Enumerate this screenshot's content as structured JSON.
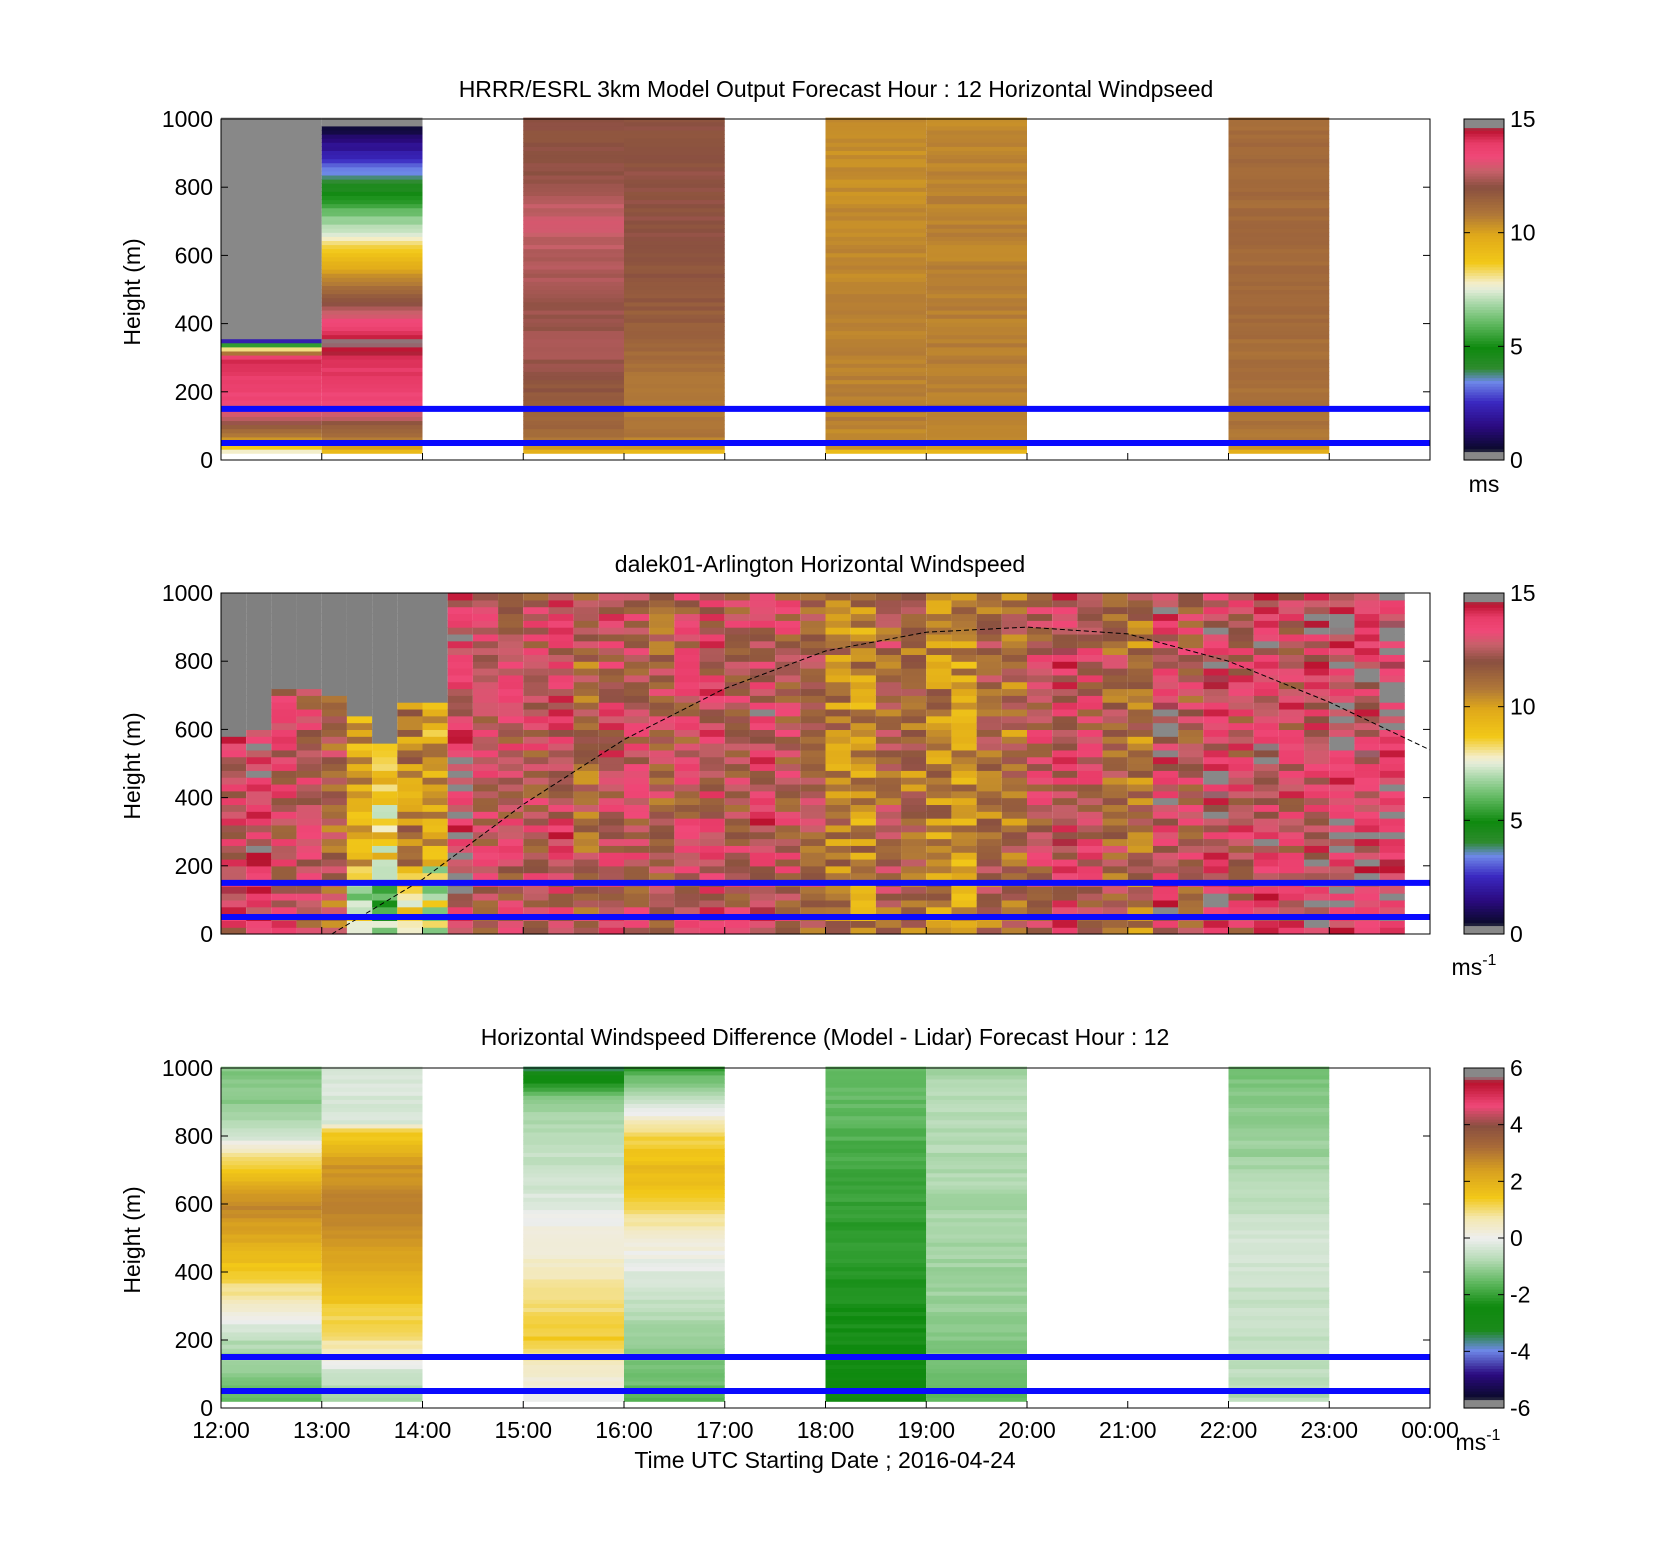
{
  "figure": {
    "xlabel": "Time UTC  Starting Date ; 2016-04-24"
  },
  "chart_data": [
    {
      "type": "heatmap",
      "title": "HRRR/ESRL 3km Model Output   Forecast Hour : 12 Horizontal Windpseed",
      "ylabel": "Height (m)",
      "ylim": [
        0,
        1000
      ],
      "yticks": [
        0,
        200,
        400,
        600,
        800,
        1000
      ],
      "x_ticklabels": [
        "12:00",
        "13:00",
        "14:00",
        "15:00",
        "16:00",
        "17:00",
        "18:00",
        "19:00",
        "20:00",
        "21:00",
        "22:00",
        "23:00",
        "00:00"
      ],
      "show_x_ticklabels": false,
      "colorbar": {
        "min": 0,
        "max": 15,
        "ticks": [
          0,
          5,
          10,
          15
        ],
        "unit": "ms",
        "unit_sup": ""
      },
      "reference_lines_m": [
        150,
        50
      ],
      "columns": [
        {
          "start_hour": 0,
          "end_hour": 1,
          "profile": [
            [
              25,
              7.6
            ],
            [
              40,
              8.7
            ],
            [
              60,
              10.2
            ],
            [
              80,
              11.0
            ],
            [
              100,
              11.6
            ],
            [
              130,
              12.8
            ],
            [
              160,
              13.3
            ],
            [
              200,
              13.6
            ],
            [
              250,
              13.9
            ],
            [
              300,
              14.2
            ],
            [
              360,
              0
            ],
            [
              1000,
              0
            ]
          ]
        },
        {
          "start_hour": 1,
          "end_hour": 2,
          "profile": [
            [
              25,
              9.2
            ],
            [
              40,
              10.2
            ],
            [
              60,
              10.8
            ],
            [
              80,
              11.2
            ],
            [
              100,
              11.6
            ],
            [
              130,
              12.8
            ],
            [
              160,
              13.3
            ],
            [
              200,
              13.6
            ],
            [
              250,
              13.9
            ],
            [
              300,
              14.3
            ],
            [
              350,
              14.6
            ],
            [
              1000,
              0
            ]
          ]
        },
        {
          "start_hour": 3,
          "end_hour": 4,
          "profile": [
            [
              25,
              9.4
            ],
            [
              40,
              10.4
            ],
            [
              80,
              11.2
            ],
            [
              150,
              11.6
            ],
            [
              250,
              12.0
            ],
            [
              320,
              12.4
            ],
            [
              380,
              12.2
            ],
            [
              500,
              12.3
            ],
            [
              600,
              12.5
            ],
            [
              700,
              12.9
            ],
            [
              850,
              12.1
            ],
            [
              1000,
              11.9
            ]
          ]
        },
        {
          "start_hour": 4,
          "end_hour": 5,
          "profile": [
            [
              25,
              9.4
            ],
            [
              40,
              10.4
            ],
            [
              80,
              10.9
            ],
            [
              200,
              10.8
            ],
            [
              300,
              11.2
            ],
            [
              400,
              11.6
            ],
            [
              550,
              11.8
            ],
            [
              700,
              12.0
            ],
            [
              850,
              12.0
            ],
            [
              1000,
              12.0
            ]
          ]
        },
        {
          "start_hour": 6,
          "end_hour": 7,
          "profile": [
            [
              25,
              9.3
            ],
            [
              40,
              10.4
            ],
            [
              100,
              10.6
            ],
            [
              300,
              10.6
            ],
            [
              600,
              10.5
            ],
            [
              800,
              10.4
            ],
            [
              1000,
              10.4
            ]
          ]
        },
        {
          "start_hour": 7,
          "end_hour": 8,
          "profile": [
            [
              25,
              9.3
            ],
            [
              40,
              10.4
            ],
            [
              100,
              10.6
            ],
            [
              300,
              10.7
            ],
            [
              600,
              10.6
            ],
            [
              800,
              10.6
            ],
            [
              1000,
              10.5
            ]
          ]
        },
        {
          "start_hour": 10,
          "end_hour": 11,
          "profile": [
            [
              25,
              9.4
            ],
            [
              40,
              10.6
            ],
            [
              100,
              11.0
            ],
            [
              300,
              11.1
            ],
            [
              600,
              11.2
            ],
            [
              800,
              11.2
            ],
            [
              1000,
              11.2
            ]
          ]
        }
      ]
    },
    {
      "type": "heatmap",
      "title": "dalek01-Arlington  Horizontal Windspeed",
      "ylabel": "Height (m)",
      "ylim": [
        0,
        1000
      ],
      "yticks": [
        0,
        200,
        400,
        600,
        800,
        1000
      ],
      "x_ticklabels": [
        "12:00",
        "13:00",
        "14:00",
        "15:00",
        "16:00",
        "17:00",
        "18:00",
        "19:00",
        "20:00",
        "21:00",
        "22:00",
        "23:00",
        "00:00"
      ],
      "show_x_ticklabels": false,
      "colorbar": {
        "min": 0,
        "max": 15,
        "ticks": [
          0,
          5,
          10,
          15
        ],
        "unit": "ms",
        "unit_sup": "-1"
      },
      "reference_lines_m": [
        150,
        50
      ],
      "column_width_hours": 0.25,
      "end_hour": 11.85,
      "curve": {
        "style": "dashed",
        "points": [
          [
            1.1,
            0
          ],
          [
            2,
            160
          ],
          [
            3,
            380
          ],
          [
            4,
            570
          ],
          [
            5,
            720
          ],
          [
            6,
            830
          ],
          [
            7,
            885
          ],
          [
            8,
            900
          ],
          [
            9,
            880
          ],
          [
            10,
            800
          ],
          [
            11,
            680
          ],
          [
            12,
            540
          ]
        ]
      },
      "columns_mean_speed": [
        13.2,
        13.8,
        12.8,
        12.4,
        11.6,
        10.0,
        8.6,
        10.6,
        9.8,
        13.6,
        12.6,
        12.6,
        12.5,
        13.1,
        11.6,
        12.8,
        12.4,
        11.8,
        12.4,
        12.9,
        12.4,
        13.2,
        12.4,
        11.8,
        10.8,
        10.4,
        11.8,
        11.2,
        10.6,
        10.2,
        11.4,
        11.2,
        12.4,
        13.1,
        12.6,
        11.7,
        11.1,
        13.4,
        12.2,
        13.4,
        12.8,
        13.4,
        12.9,
        13.3,
        13.9,
        13.5,
        14.1
      ],
      "data_top_m": [
        570,
        600,
        710,
        710,
        690,
        640,
        560,
        680,
        680,
        1000,
        1000,
        1000,
        1000,
        1000,
        1000,
        1000,
        1000,
        1000,
        1000,
        1000,
        1000,
        1000,
        1000,
        1000,
        1000,
        1000,
        1000,
        1000,
        1000,
        1000,
        1000,
        1000,
        1000,
        1000,
        1000,
        1000,
        1000,
        1000,
        1000,
        1000,
        1000,
        1000,
        1000,
        1000,
        1000,
        1000,
        1000
      ]
    },
    {
      "type": "heatmap",
      "title": "Horizontal Windspeed Difference (Model - Lidar) Forecast Hour : 12",
      "ylabel": "Height (m)",
      "ylim": [
        0,
        1000
      ],
      "yticks": [
        0,
        200,
        400,
        600,
        800,
        1000
      ],
      "x_ticklabels": [
        "12:00",
        "13:00",
        "14:00",
        "15:00",
        "16:00",
        "17:00",
        "18:00",
        "19:00",
        "20:00",
        "21:00",
        "22:00",
        "23:00",
        "00:00"
      ],
      "show_x_ticklabels": true,
      "colorbar": {
        "min": -6,
        "max": 6,
        "ticks": [
          -6,
          -4,
          -2,
          0,
          2,
          4,
          6
        ],
        "unit": "ms",
        "unit_sup": "-1"
      },
      "reference_lines_m": [
        150,
        50
      ],
      "columns": [
        {
          "start_hour": 0,
          "end_hour": 1,
          "profile": [
            [
              5,
              -1.8
            ],
            [
              30,
              -1.6
            ],
            [
              100,
              -1.2
            ],
            [
              200,
              -0.7
            ],
            [
              300,
              0.4
            ],
            [
              400,
              1.4
            ],
            [
              500,
              2.2
            ],
            [
              600,
              2.8
            ],
            [
              700,
              1.5
            ],
            [
              760,
              0.6
            ],
            [
              800,
              -0.4
            ],
            [
              870,
              -1.0
            ],
            [
              930,
              -1.2
            ]
          ]
        },
        {
          "start_hour": 1,
          "end_hour": 2,
          "profile": [
            [
              5,
              -1.0
            ],
            [
              100,
              -0.5
            ],
            [
              150,
              0.3
            ],
            [
              200,
              0.9
            ],
            [
              300,
              1.4
            ],
            [
              400,
              2.1
            ],
            [
              500,
              2.6
            ],
            [
              600,
              2.9
            ],
            [
              720,
              2.5
            ],
            [
              820,
              1.2
            ],
            [
              840,
              -0.3
            ]
          ]
        },
        {
          "start_hour": 3,
          "end_hour": 4,
          "profile": [
            [
              5,
              -0.5
            ],
            [
              50,
              0.2
            ],
            [
              100,
              0.3
            ],
            [
              200,
              1.4
            ],
            [
              300,
              1.0
            ],
            [
              400,
              0.6
            ],
            [
              500,
              0.2
            ],
            [
              600,
              -0.2
            ],
            [
              700,
              -0.5
            ],
            [
              800,
              -0.6
            ],
            [
              900,
              -1.0
            ],
            [
              960,
              -2.2
            ],
            [
              1000,
              -3.6
            ]
          ]
        },
        {
          "start_hour": 4,
          "end_hour": 5,
          "profile": [
            [
              5,
              -1.6
            ],
            [
              100,
              -1.4
            ],
            [
              200,
              -1.0
            ],
            [
              300,
              -0.6
            ],
            [
              400,
              -0.2
            ],
            [
              500,
              0.3
            ],
            [
              600,
              1.2
            ],
            [
              700,
              1.8
            ],
            [
              800,
              1.2
            ],
            [
              900,
              -0.4
            ],
            [
              960,
              -1.2
            ],
            [
              1000,
              -2.0
            ]
          ]
        },
        {
          "start_hour": 6,
          "end_hour": 7,
          "profile": [
            [
              5,
              -2.4
            ],
            [
              100,
              -2.5
            ],
            [
              300,
              -2.3
            ],
            [
              500,
              -2.1
            ],
            [
              700,
              -1.9
            ],
            [
              900,
              -1.5
            ],
            [
              1000,
              -1.6
            ]
          ]
        },
        {
          "start_hour": 7,
          "end_hour": 8,
          "profile": [
            [
              5,
              -1.6
            ],
            [
              100,
              -1.4
            ],
            [
              300,
              -1.0
            ],
            [
              500,
              -0.9
            ],
            [
              700,
              -0.8
            ],
            [
              900,
              -0.7
            ],
            [
              1000,
              -0.9
            ]
          ]
        },
        {
          "start_hour": 10,
          "end_hour": 11,
          "profile": [
            [
              5,
              -0.8
            ],
            [
              100,
              -0.6
            ],
            [
              300,
              -0.5
            ],
            [
              500,
              -0.4
            ],
            [
              700,
              -0.9
            ],
            [
              900,
              -1.2
            ],
            [
              1000,
              -1.3
            ]
          ]
        }
      ]
    }
  ]
}
